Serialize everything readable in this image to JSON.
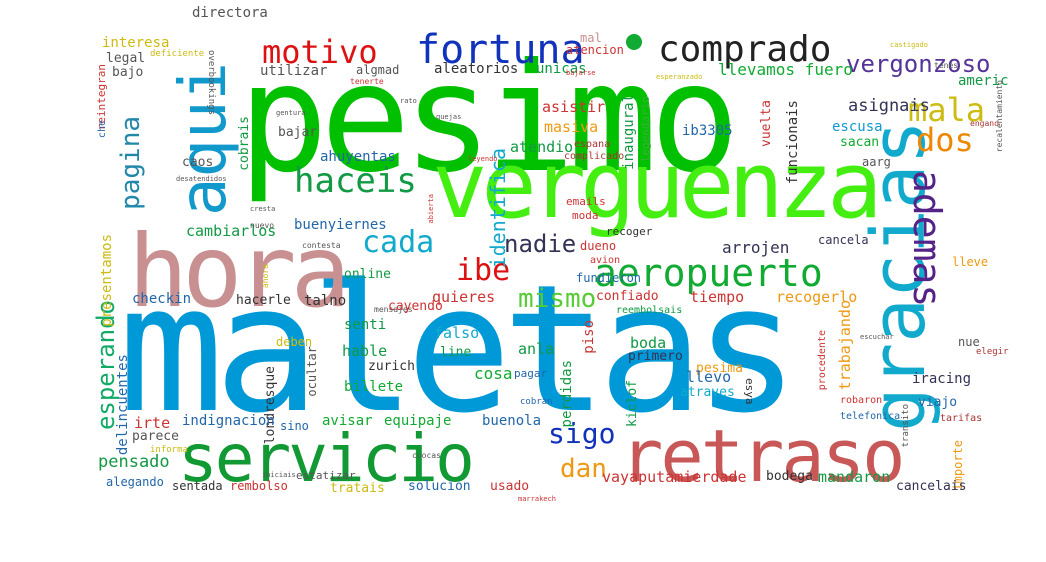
{
  "words": [
    {
      "text": "pesimo",
      "color": "#00c000"
    },
    {
      "text": "maletas",
      "color": "#0099d8"
    },
    {
      "text": "verguenza",
      "color": "#44ee11"
    },
    {
      "text": "hora",
      "color": "#c89090"
    },
    {
      "text": "retraso",
      "color": "#c85858"
    },
    {
      "text": "servicio",
      "color": "#119933"
    },
    {
      "text": "gracias",
      "color": "#11aacc"
    },
    {
      "text": "aqui",
      "color": "#1199cc"
    },
    {
      "text": "aeropuerto",
      "color": "#11aa33"
    },
    {
      "text": "fortuna",
      "color": "#1133bb"
    },
    {
      "text": "comprado",
      "color": "#222222"
    },
    {
      "text": "motivo",
      "color": "#dd1111"
    },
    {
      "text": "ademas",
      "color": "#552288"
    },
    {
      "text": "haceis",
      "color": "#119944"
    },
    {
      "text": "vergonzoso",
      "color": "#553399"
    },
    {
      "text": "mala",
      "color": "#ccbb11"
    },
    {
      "text": "dos",
      "color": "#ee8800"
    },
    {
      "text": "cada",
      "color": "#11aacc"
    },
    {
      "text": "pagina",
      "color": "#2288aa"
    },
    {
      "text": "ibe",
      "color": "#dd1111"
    },
    {
      "text": "mismo",
      "color": "#55cc33"
    },
    {
      "text": "nadie",
      "color": "#333355"
    },
    {
      "text": "sigo",
      "color": "#1133bb"
    },
    {
      "text": "dan",
      "color": "#ee9911"
    },
    {
      "text": "esperando",
      "color": "#11aa66"
    },
    {
      "text": "identifica",
      "color": "#11aacc"
    },
    {
      "text": "americ",
      "color": "#119944"
    },
    {
      "text": "interesa",
      "color": "#ccbb11"
    },
    {
      "text": "directora",
      "color": "#555555"
    },
    {
      "text": "legal",
      "color": "#555555"
    },
    {
      "text": "bajo",
      "color": "#555555"
    },
    {
      "text": "deficiente",
      "color": "#ccbb11"
    },
    {
      "text": "overbookings",
      "color": "#555555"
    },
    {
      "text": "utilizar",
      "color": "#555555"
    },
    {
      "text": "algmad",
      "color": "#555555"
    },
    {
      "text": "aleatorios",
      "color": "#333333"
    },
    {
      "text": "unicas",
      "color": "#119944"
    },
    {
      "text": "llevamos fuero",
      "color": "#11aa33"
    },
    {
      "text": "atencion",
      "color": "#cc3333"
    },
    {
      "text": "mal",
      "color": "#c89090"
    },
    {
      "text": "prisa",
      "color": "#33aa33"
    },
    {
      "text": "asignais",
      "color": "#333355"
    },
    {
      "text": "escusa",
      "color": "#1199cc"
    },
    {
      "text": "sacan",
      "color": "#11aa33"
    },
    {
      "text": "funcionais",
      "color": "#333333"
    },
    {
      "text": "vuelta",
      "color": "#cc3333"
    },
    {
      "text": "ib3305",
      "color": "#2266aa"
    },
    {
      "text": "inaugural",
      "color": "#119944"
    },
    {
      "text": "legendario",
      "color": "#44aa44"
    },
    {
      "text": "asistir",
      "color": "#cc3333"
    },
    {
      "text": "masiva",
      "color": "#ee9911"
    },
    {
      "text": "atendio",
      "color": "#119944"
    },
    {
      "text": "complicado",
      "color": "#aa3333"
    },
    {
      "text": "espana",
      "color": "#aa3333"
    },
    {
      "text": "ahuyentas",
      "color": "#2266aa"
    },
    {
      "text": "bajar",
      "color": "#555555"
    },
    {
      "text": "caos",
      "color": "#555555"
    },
    {
      "text": "cobrais",
      "color": "#119944"
    },
    {
      "text": "implementacion",
      "color": "#119944"
    },
    {
      "text": "cambiarlos",
      "color": "#119944"
    },
    {
      "text": "buenyiernes",
      "color": "#2266aa"
    },
    {
      "text": "combinacion",
      "color": "#555555"
    },
    {
      "text": "arrojen",
      "color": "#333355"
    },
    {
      "text": "cancela",
      "color": "#333355"
    },
    {
      "text": "emails",
      "color": "#cc3333"
    },
    {
      "text": "moda",
      "color": "#cc3333"
    },
    {
      "text": "recoger",
      "color": "#333333"
    },
    {
      "text": "presentamos",
      "color": "#ccbb11"
    },
    {
      "text": "atascando",
      "color": "#ccbb11"
    },
    {
      "text": "nuevo",
      "color": "#555555"
    },
    {
      "text": "online",
      "color": "#119944"
    },
    {
      "text": "aviso",
      "color": "#aa3333"
    },
    {
      "text": "avion",
      "color": "#cc3333"
    },
    {
      "text": "fundieron",
      "color": "#2266aa"
    },
    {
      "text": "dueno",
      "color": "#cc3333"
    },
    {
      "text": "actuacion",
      "color": "#2266aa"
    },
    {
      "text": "segundo",
      "color": "#119944"
    },
    {
      "text": "lleve",
      "color": "#ee9911"
    },
    {
      "text": "checkin",
      "color": "#2266aa"
    },
    {
      "text": "hacerle",
      "color": "#333333"
    },
    {
      "text": "talno",
      "color": "#333333"
    },
    {
      "text": "quieres",
      "color": "#cc3333"
    },
    {
      "text": "confiado",
      "color": "#cc3333"
    },
    {
      "text": "tiempo",
      "color": "#cc3333"
    },
    {
      "text": "recogerlo",
      "color": "#ee9911"
    },
    {
      "text": "reembolsais",
      "color": "#119944"
    },
    {
      "text": "trabajando",
      "color": "#ee9911"
    },
    {
      "text": "iracing",
      "color": "#333355"
    },
    {
      "text": "nue",
      "color": "#555555"
    },
    {
      "text": "elegir",
      "color": "#aa3333"
    },
    {
      "text": "senti",
      "color": "#119944"
    },
    {
      "text": "hable",
      "color": "#119944"
    },
    {
      "text": "falso",
      "color": "#11aacc"
    },
    {
      "text": "piso",
      "color": "#cc3333"
    },
    {
      "text": "ocultar",
      "color": "#555555"
    },
    {
      "text": "deben",
      "color": "#ccbb11"
    },
    {
      "text": "line",
      "color": "#119944"
    },
    {
      "text": "cosa",
      "color": "#11aa33"
    },
    {
      "text": "anla",
      "color": "#119944"
    },
    {
      "text": "boda",
      "color": "#119944"
    },
    {
      "text": "perdidas",
      "color": "#119944"
    },
    {
      "text": "pesima",
      "color": "#ee9911"
    },
    {
      "text": "primero",
      "color": "#333355"
    },
    {
      "text": "llevo",
      "color": "#2266aa"
    },
    {
      "text": "viajo",
      "color": "#2266aa"
    },
    {
      "text": "robaron",
      "color": "#cc3333"
    },
    {
      "text": "zurich",
      "color": "#333333"
    },
    {
      "text": "billete",
      "color": "#11aa33"
    },
    {
      "text": "pagar",
      "color": "#2266aa"
    },
    {
      "text": "delincuentes",
      "color": "#2266aa"
    },
    {
      "text": "londresque",
      "color": "#333333"
    },
    {
      "text": "kiclof",
      "color": "#119944"
    },
    {
      "text": "atraves",
      "color": "#11aacc"
    },
    {
      "text": "esya",
      "color": "#333333"
    },
    {
      "text": "indignacion",
      "color": "#2266aa"
    },
    {
      "text": "avisar",
      "color": "#11aa33"
    },
    {
      "text": "equipaje",
      "color": "#11aa33"
    },
    {
      "text": "buenola",
      "color": "#2266aa"
    },
    {
      "text": "irte",
      "color": "#cc3333"
    },
    {
      "text": "parece",
      "color": "#555555"
    },
    {
      "text": "sino",
      "color": "#2266aa"
    },
    {
      "text": "pensado",
      "color": "#119944"
    },
    {
      "text": "telefonica",
      "color": "#2266aa"
    },
    {
      "text": "tarifas",
      "color": "#aa3333"
    },
    {
      "text": "transito",
      "color": "#555555"
    },
    {
      "text": "procedente",
      "color": "#cc3333"
    },
    {
      "text": "importe",
      "color": "#ee9911"
    },
    {
      "text": "vayaputamierdade",
      "color": "#cc3333"
    },
    {
      "text": "bodega",
      "color": "#333333"
    },
    {
      "text": "mandaron",
      "color": "#119944"
    },
    {
      "text": "cancelais",
      "color": "#333355"
    },
    {
      "text": "alegando",
      "color": "#2266aa"
    },
    {
      "text": "sentada",
      "color": "#333333"
    },
    {
      "text": "rembolso",
      "color": "#cc3333"
    },
    {
      "text": "estatizar",
      "color": "#555555"
    },
    {
      "text": "tratais",
      "color": "#ccbb11"
    },
    {
      "text": "solucion",
      "color": "#2266aa"
    },
    {
      "text": "usado",
      "color": "#cc3333"
    },
    {
      "text": "informa",
      "color": "#ccbb11"
    },
    {
      "text": "reintegran",
      "color": "#cc3333"
    },
    {
      "text": "che",
      "color": "#2266aa"
    },
    {
      "text": "aarg",
      "color": "#555555"
    },
    {
      "text": "tenes",
      "color": "#555555"
    },
    {
      "text": "recalentamiento",
      "color": "#555555"
    },
    {
      "text": "engano",
      "color": "#aa3333"
    },
    {
      "text": "castigado",
      "color": "#ccbb11"
    },
    {
      "text": "esperanzado",
      "color": "#ccbb11"
    },
    {
      "text": "bajarse",
      "color": "#cc3333"
    },
    {
      "text": "tenerte",
      "color": "#cc3333"
    },
    {
      "text": "gentura",
      "color": "#555555"
    },
    {
      "text": "rato",
      "color": "#555555"
    },
    {
      "text": "quejas",
      "color": "#555555"
    },
    {
      "text": "desatendidos",
      "color": "#555555"
    },
    {
      "text": "ahora",
      "color": "#ccbb11"
    },
    {
      "text": "abierta",
      "color": "#cc3333"
    },
    {
      "text": "contesta",
      "color": "#555555"
    },
    {
      "text": "cresta",
      "color": "#555555"
    },
    {
      "text": "cuocas",
      "color": "#555555"
    },
    {
      "text": "cobran",
      "color": "#2266aa"
    },
    {
      "text": "mensajes",
      "color": "#555555"
    },
    {
      "text": "escuchar",
      "color": "#555555"
    },
    {
      "text": "caying",
      "color": "#555555"
    },
    {
      "text": "cayendo",
      "color": "#cc3333"
    },
    {
      "text": "iniciais",
      "color": "#555555"
    },
    {
      "text": "marrakech",
      "color": "#cc3333"
    },
    {
      "text": "leyendo",
      "color": "#cc3333"
    }
  ]
}
